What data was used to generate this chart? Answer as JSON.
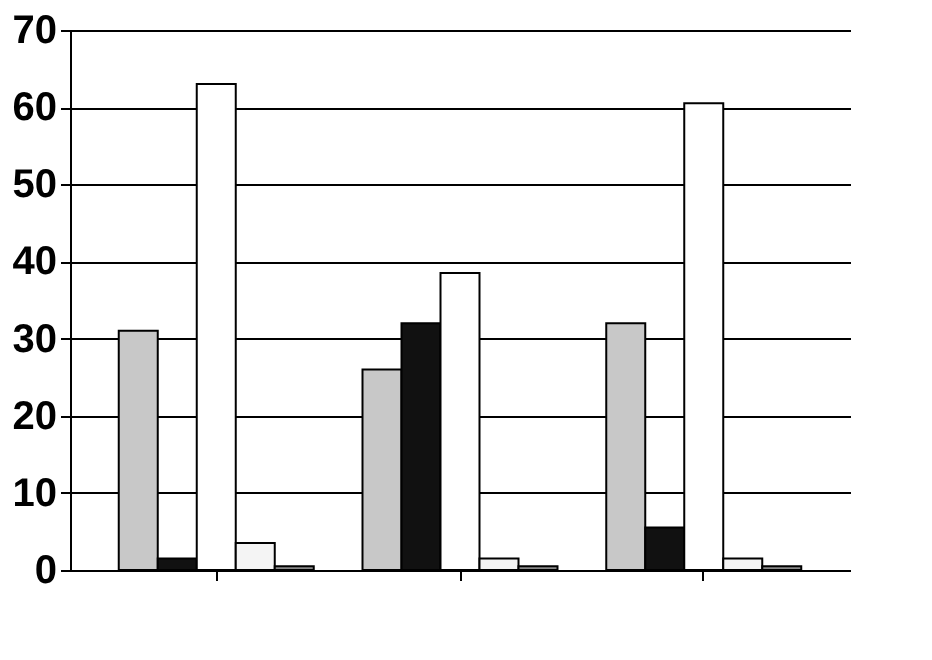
{
  "chart_data": {
    "type": "bar",
    "categories": [
      null,
      null,
      null
    ],
    "series": [
      {
        "color": "#c8c8c8",
        "values": [
          31,
          26,
          32
        ]
      },
      {
        "color": "#111111",
        "values": [
          1.5,
          32,
          5.5
        ]
      },
      {
        "color": "#ffffff",
        "values": [
          63,
          38.5,
          60.5
        ]
      },
      {
        "color": "#f4f4f4",
        "values": [
          3.5,
          1.5,
          1.5
        ]
      },
      {
        "color": "#888888",
        "values": [
          0.5,
          0.5,
          0.5
        ]
      }
    ],
    "ylim": [
      0,
      70
    ],
    "yticks": [
      0,
      10,
      20,
      30,
      40,
      50,
      60,
      70
    ],
    "grid": "y",
    "legend": false
  }
}
